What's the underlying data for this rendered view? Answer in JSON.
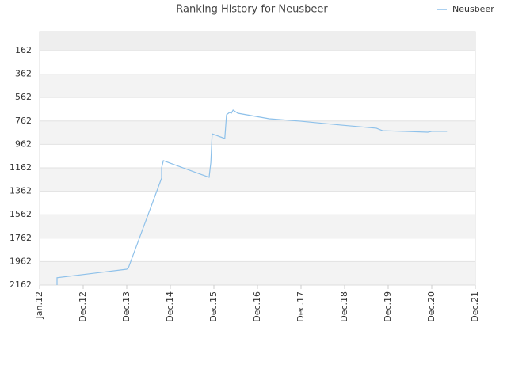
{
  "chart_data": {
    "type": "line",
    "title": "Ranking History for Neusbeer",
    "x": [
      0.4,
      0.4,
      2.0,
      2.04,
      2.8,
      2.8,
      2.84,
      3.89,
      3.93,
      3.96,
      4.25,
      4.29,
      4.36,
      4.4,
      4.44,
      4.55,
      5.27,
      6.0,
      6.91,
      7.73,
      7.87,
      8.36,
      8.91,
      9.0,
      9.35
    ],
    "series": [
      {
        "name": "Neusbeer",
        "color": "#8ec1ea",
        "values": [
          2162,
          2100,
          2027,
          2013,
          1250,
          1162,
          1101,
          1243,
          1115,
          872,
          912,
          709,
          689,
          696,
          669,
          696,
          743,
          764,
          797,
          824,
          845,
          851,
          858,
          851,
          851
        ]
      }
    ],
    "xlim": [
      0,
      10
    ],
    "xticks": [
      {
        "value": 0,
        "label": "Jan.12"
      },
      {
        "value": 1,
        "label": "Dec.12"
      },
      {
        "value": 2,
        "label": "Dec.13"
      },
      {
        "value": 3,
        "label": "Dec.14"
      },
      {
        "value": 4,
        "label": "Dec.15"
      },
      {
        "value": 5,
        "label": "Dec.16"
      },
      {
        "value": 6,
        "label": "Dec.17"
      },
      {
        "value": 7,
        "label": "Dec.18"
      },
      {
        "value": 8,
        "label": "Dec.19"
      },
      {
        "value": 9,
        "label": "Dec.20"
      },
      {
        "value": 10,
        "label": "Dec.21"
      }
    ],
    "ylim": [
      2162,
      0
    ],
    "yticks": [
      162,
      362,
      562,
      762,
      962,
      1162,
      1362,
      1562,
      1762,
      1962,
      2162
    ],
    "grid": true,
    "legend": "top-right"
  }
}
